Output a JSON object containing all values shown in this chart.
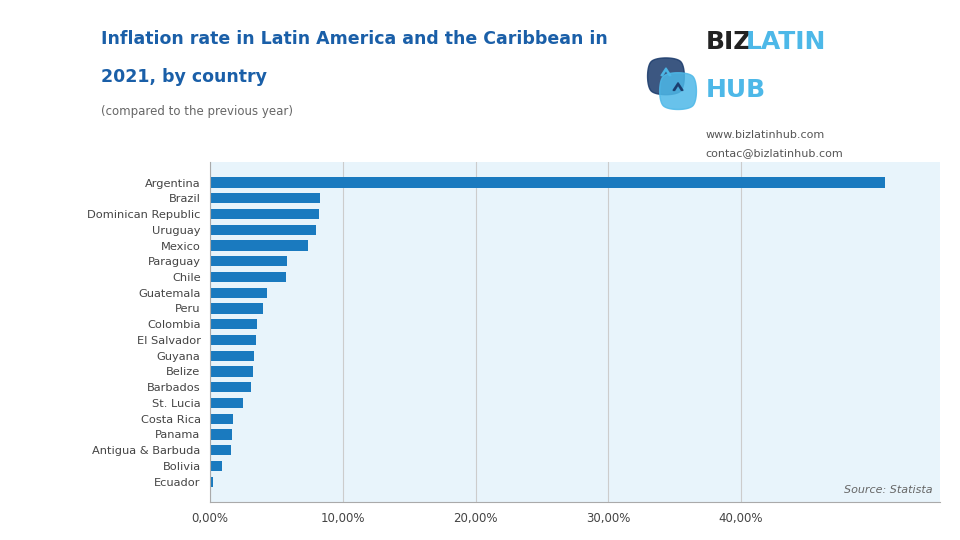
{
  "title_line1": "Inflation rate in Latin America and the Caribbean in",
  "title_line2": "2021, by country",
  "subtitle": "(compared to the previous year)",
  "source": "Source: Statista",
  "website1": "www.bizlatinhub.com",
  "website2": "contac@bizlatinhub.com",
  "countries": [
    "Argentina",
    "Brazil",
    "Dominican Republic",
    "Uruguay",
    "Mexico",
    "Paraguay",
    "Chile",
    "Guatemala",
    "Peru",
    "Colombia",
    "El Salvador",
    "Guyana",
    "Belize",
    "Barbados",
    "St. Lucia",
    "Costa Rica",
    "Panama",
    "Antigua & Barbuda",
    "Bolivia",
    "Ecuador"
  ],
  "values": [
    50.9,
    8.3,
    8.2,
    7.96,
    7.36,
    5.76,
    5.68,
    4.29,
    4.0,
    3.49,
    3.47,
    3.28,
    3.2,
    3.09,
    2.47,
    1.73,
    1.63,
    1.6,
    0.87,
    0.18
  ],
  "bar_color": "#1a7abf",
  "bg_color": "#e8f4fb",
  "outer_bg_color": "#ffffff",
  "title_color": "#1a5fa8",
  "subtitle_color": "#666666",
  "source_color": "#666666",
  "website_color": "#555555",
  "tick_label_color": "#444444",
  "grid_color": "#cccccc",
  "xlim": [
    0,
    55
  ],
  "xticks": [
    0,
    10,
    20,
    30,
    40
  ],
  "xtick_labels": [
    "0,00%",
    "10,00%",
    "20,00%",
    "30,00%",
    "40,00%"
  ],
  "biz_color": "#222222",
  "latin_color": "#4db8e8",
  "hub_color": "#4db8e8"
}
